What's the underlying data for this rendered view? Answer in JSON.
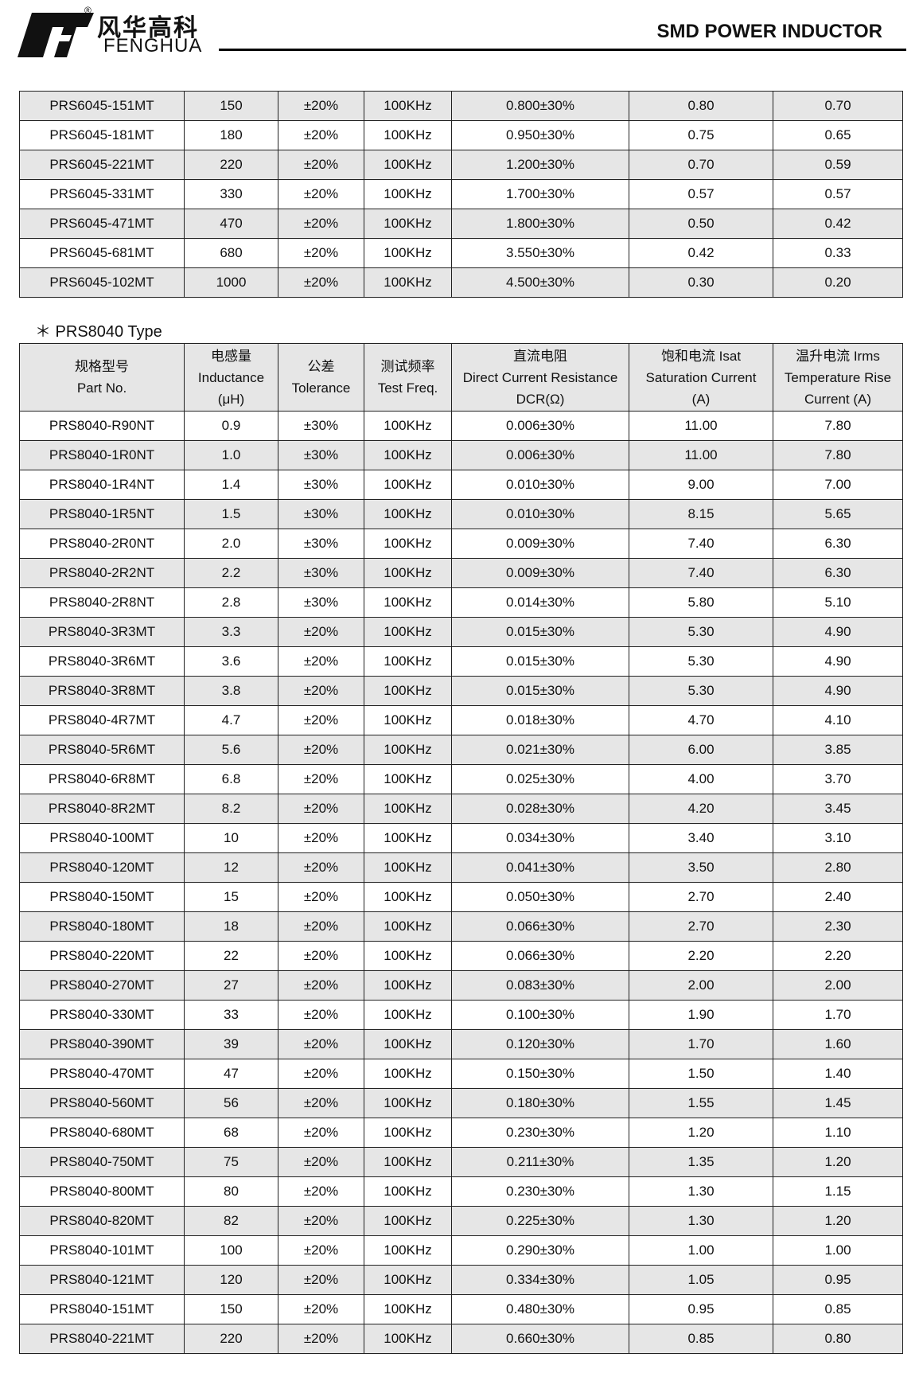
{
  "header": {
    "brand_cn": "风华高科",
    "brand_en": "FENGHUA",
    "registered": "®",
    "title": "SMD POWER INDUCTOR"
  },
  "table1": {
    "rows": [
      [
        "PRS6045-151MT",
        "150",
        "±20%",
        "100KHz",
        "0.800±30%",
        "0.80",
        "0.70"
      ],
      [
        "PRS6045-181MT",
        "180",
        "±20%",
        "100KHz",
        "0.950±30%",
        "0.75",
        "0.65"
      ],
      [
        "PRS6045-221MT",
        "220",
        "±20%",
        "100KHz",
        "1.200±30%",
        "0.70",
        "0.59"
      ],
      [
        "PRS6045-331MT",
        "330",
        "±20%",
        "100KHz",
        "1.700±30%",
        "0.57",
        "0.57"
      ],
      [
        "PRS6045-471MT",
        "470",
        "±20%",
        "100KHz",
        "1.800±30%",
        "0.50",
        "0.42"
      ],
      [
        "PRS6045-681MT",
        "680",
        "±20%",
        "100KHz",
        "3.550±30%",
        "0.42",
        "0.33"
      ],
      [
        "PRS6045-102MT",
        "1000",
        "±20%",
        "100KHz",
        "4.500±30%",
        "0.30",
        "0.20"
      ]
    ]
  },
  "section_label": "＊ PRS8040 Type",
  "table2": {
    "header": [
      [
        "规格型号",
        "Part No."
      ],
      [
        "电感量",
        "Inductance",
        "(μH)"
      ],
      [
        "公差",
        "Tolerance"
      ],
      [
        "测试频率",
        "Test Freq."
      ],
      [
        "直流电阻",
        "Direct Current Resistance",
        "DCR(Ω)"
      ],
      [
        "饱和电流  Isat",
        "Saturation Current",
        "(A)"
      ],
      [
        "温升电流  Irms",
        "Temperature Rise",
        "Current (A)"
      ]
    ],
    "rows": [
      [
        "PRS8040-R90NT",
        "0.9",
        "±30%",
        "100KHz",
        "0.006±30%",
        "11.00",
        "7.80"
      ],
      [
        "PRS8040-1R0NT",
        "1.0",
        "±30%",
        "100KHz",
        "0.006±30%",
        "11.00",
        "7.80"
      ],
      [
        "PRS8040-1R4NT",
        "1.4",
        "±30%",
        "100KHz",
        "0.010±30%",
        "9.00",
        "7.00"
      ],
      [
        "PRS8040-1R5NT",
        "1.5",
        "±30%",
        "100KHz",
        "0.010±30%",
        "8.15",
        "5.65"
      ],
      [
        "PRS8040-2R0NT",
        "2.0",
        "±30%",
        "100KHz",
        "0.009±30%",
        "7.40",
        "6.30"
      ],
      [
        "PRS8040-2R2NT",
        "2.2",
        "±30%",
        "100KHz",
        "0.009±30%",
        "7.40",
        "6.30"
      ],
      [
        "PRS8040-2R8NT",
        "2.8",
        "±30%",
        "100KHz",
        "0.014±30%",
        "5.80",
        "5.10"
      ],
      [
        "PRS8040-3R3MT",
        "3.3",
        "±20%",
        "100KHz",
        "0.015±30%",
        "5.30",
        "4.90"
      ],
      [
        "PRS8040-3R6MT",
        "3.6",
        "±20%",
        "100KHz",
        "0.015±30%",
        "5.30",
        "4.90"
      ],
      [
        "PRS8040-3R8MT",
        "3.8",
        "±20%",
        "100KHz",
        "0.015±30%",
        "5.30",
        "4.90"
      ],
      [
        "PRS8040-4R7MT",
        "4.7",
        "±20%",
        "100KHz",
        "0.018±30%",
        "4.70",
        "4.10"
      ],
      [
        "PRS8040-5R6MT",
        "5.6",
        "±20%",
        "100KHz",
        "0.021±30%",
        "6.00",
        "3.85"
      ],
      [
        "PRS8040-6R8MT",
        "6.8",
        "±20%",
        "100KHz",
        "0.025±30%",
        "4.00",
        "3.70"
      ],
      [
        "PRS8040-8R2MT",
        "8.2",
        "±20%",
        "100KHz",
        "0.028±30%",
        "4.20",
        "3.45"
      ],
      [
        "PRS8040-100MT",
        "10",
        "±20%",
        "100KHz",
        "0.034±30%",
        "3.40",
        "3.10"
      ],
      [
        "PRS8040-120MT",
        "12",
        "±20%",
        "100KHz",
        "0.041±30%",
        "3.50",
        "2.80"
      ],
      [
        "PRS8040-150MT",
        "15",
        "±20%",
        "100KHz",
        "0.050±30%",
        "2.70",
        "2.40"
      ],
      [
        "PRS8040-180MT",
        "18",
        "±20%",
        "100KHz",
        "0.066±30%",
        "2.70",
        "2.30"
      ],
      [
        "PRS8040-220MT",
        "22",
        "±20%",
        "100KHz",
        "0.066±30%",
        "2.20",
        "2.20"
      ],
      [
        "PRS8040-270MT",
        "27",
        "±20%",
        "100KHz",
        "0.083±30%",
        "2.00",
        "2.00"
      ],
      [
        "PRS8040-330MT",
        "33",
        "±20%",
        "100KHz",
        "0.100±30%",
        "1.90",
        "1.70"
      ],
      [
        "PRS8040-390MT",
        "39",
        "±20%",
        "100KHz",
        "0.120±30%",
        "1.70",
        "1.60"
      ],
      [
        "PRS8040-470MT",
        "47",
        "±20%",
        "100KHz",
        "0.150±30%",
        "1.50",
        "1.40"
      ],
      [
        "PRS8040-560MT",
        "56",
        "±20%",
        "100KHz",
        "0.180±30%",
        "1.55",
        "1.45"
      ],
      [
        "PRS8040-680MT",
        "68",
        "±20%",
        "100KHz",
        "0.230±30%",
        "1.20",
        "1.10"
      ],
      [
        "PRS8040-750MT",
        "75",
        "±20%",
        "100KHz",
        "0.211±30%",
        "1.35",
        "1.20"
      ],
      [
        "PRS8040-800MT",
        "80",
        "±20%",
        "100KHz",
        "0.230±30%",
        "1.30",
        "1.15"
      ],
      [
        "PRS8040-820MT",
        "82",
        "±20%",
        "100KHz",
        "0.225±30%",
        "1.30",
        "1.20"
      ],
      [
        "PRS8040-101MT",
        "100",
        "±20%",
        "100KHz",
        "0.290±30%",
        "1.00",
        "1.00"
      ],
      [
        "PRS8040-121MT",
        "120",
        "±20%",
        "100KHz",
        "0.334±30%",
        "1.05",
        "0.95"
      ],
      [
        "PRS8040-151MT",
        "150",
        "±20%",
        "100KHz",
        "0.480±30%",
        "0.95",
        "0.85"
      ],
      [
        "PRS8040-221MT",
        "220",
        "±20%",
        "100KHz",
        "0.660±30%",
        "0.85",
        "0.80"
      ]
    ]
  }
}
